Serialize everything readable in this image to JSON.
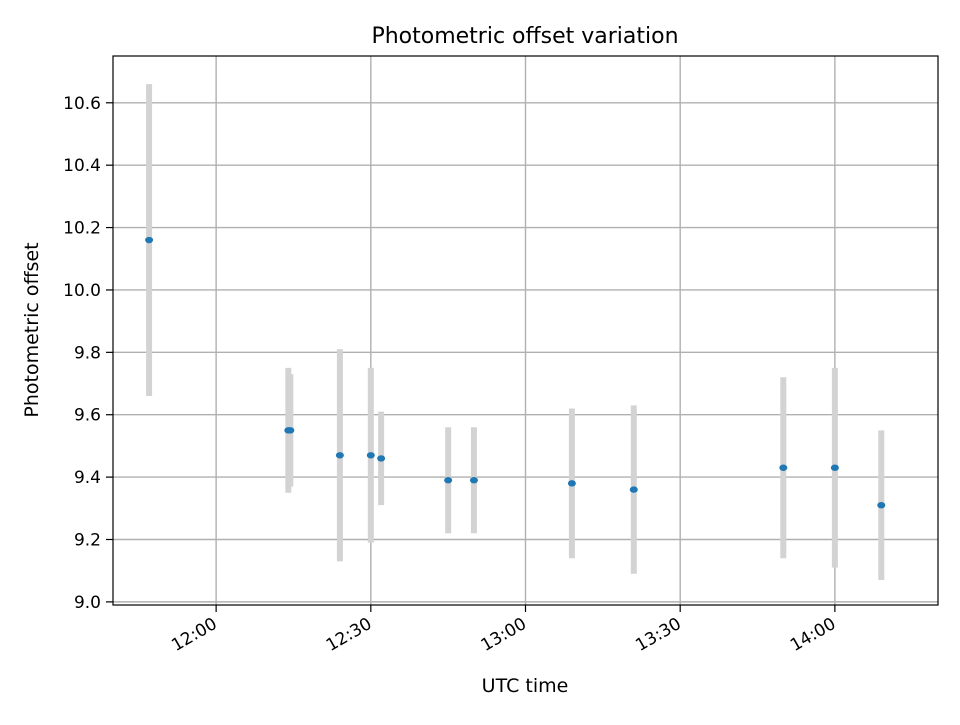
{
  "chart_data": {
    "type": "scatter",
    "title": "Photometric offset variation",
    "xlabel": "UTC time",
    "ylabel": "Photometric offset",
    "x_axis_kind": "time",
    "xlim": [
      "11:40",
      "14:20"
    ],
    "ylim": [
      8.99,
      10.75
    ],
    "x_ticks": [
      "12:00",
      "12:30",
      "13:00",
      "13:30",
      "14:00"
    ],
    "y_ticks": [
      "9.0",
      "9.2",
      "9.4",
      "9.6",
      "9.8",
      "10.0",
      "10.2",
      "10.4",
      "10.6"
    ],
    "grid": true,
    "series": [
      {
        "marker_color": "#1f77b4",
        "errorbar_color": "#d3d3d3",
        "points": [
          {
            "x": "11:47",
            "y": 10.16,
            "yerr": 0.5
          },
          {
            "x": "12:14",
            "y": 9.55,
            "yerr": 0.2
          },
          {
            "x": "12:14",
            "y": 9.55,
            "yerr": 0.18
          },
          {
            "x": "12:24",
            "y": 9.47,
            "yerr": 0.34
          },
          {
            "x": "12:30",
            "y": 9.47,
            "yerr": 0.28
          },
          {
            "x": "12:32",
            "y": 9.46,
            "yerr": 0.15
          },
          {
            "x": "12:45",
            "y": 9.39,
            "yerr": 0.17
          },
          {
            "x": "12:50",
            "y": 9.39,
            "yerr": 0.17
          },
          {
            "x": "13:09",
            "y": 9.38,
            "yerr": 0.24
          },
          {
            "x": "13:21",
            "y": 9.36,
            "yerr": 0.27
          },
          {
            "x": "13:50",
            "y": 9.43,
            "yerr": 0.29
          },
          {
            "x": "14:00",
            "y": 9.43,
            "yerr": 0.32
          },
          {
            "x": "14:09",
            "y": 9.31,
            "yerr": 0.24
          }
        ]
      }
    ]
  }
}
